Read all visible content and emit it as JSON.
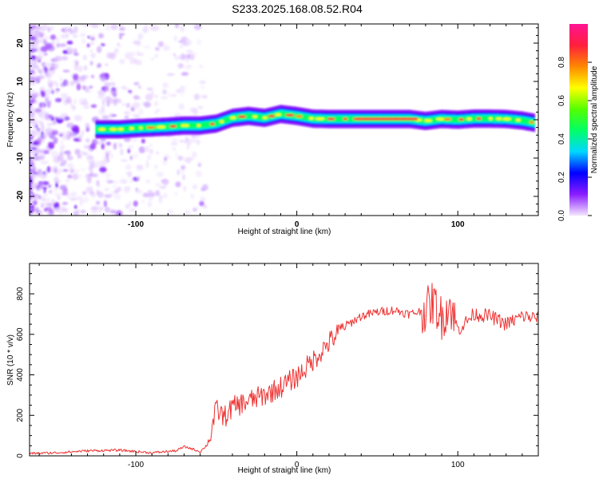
{
  "title": "S233.2025.168.08.52.R04",
  "chart_data": [
    {
      "type": "heatmap",
      "xlabel": "Height of straight line (km)",
      "ylabel": "Frequency (Hz)",
      "xlim": [
        -166,
        150
      ],
      "ylim": [
        -25,
        25
      ],
      "x_ticks": [
        {
          "value": -100,
          "label": "-100"
        },
        {
          "value": 0,
          "label": "0"
        },
        {
          "value": 100,
          "label": "100"
        }
      ],
      "y_ticks": [
        {
          "value": 20,
          "label": "20"
        },
        {
          "value": 10,
          "label": "10"
        },
        {
          "value": 0,
          "label": "0"
        },
        {
          "value": -10,
          "label": "-10"
        },
        {
          "value": -20,
          "label": "-20"
        }
      ],
      "ridge": {
        "x": [
          -125,
          -110,
          -100,
          -90,
          -80,
          -70,
          -60,
          -50,
          -40,
          -30,
          -20,
          -10,
          0,
          10,
          20,
          30,
          40,
          50,
          60,
          70,
          80,
          90,
          100,
          110,
          120,
          130,
          140,
          148
        ],
        "freq": [
          -2.5,
          -2.5,
          -2.2,
          -2.0,
          -1.8,
          -1.5,
          -1.5,
          -1.0,
          0.5,
          1.0,
          0.5,
          1.5,
          1.0,
          0.3,
          0.2,
          0.2,
          0.2,
          0.2,
          0.2,
          0.2,
          -0.3,
          0.2,
          0.0,
          0.3,
          0.3,
          0.2,
          -0.2,
          -0.8
        ]
      },
      "colorbar": {
        "label": "Normalized spectral amplitude",
        "range": [
          0,
          1
        ],
        "ticks": [
          {
            "value": 0.0,
            "label": "0.0"
          },
          {
            "value": 0.2,
            "label": "0.2"
          },
          {
            "value": 0.4,
            "label": "0.4"
          },
          {
            "value": 0.6,
            "label": "0.6"
          },
          {
            "value": 0.8,
            "label": "0.8"
          }
        ],
        "stops": [
          "#f3e6ff",
          "#8a1cff",
          "#0000ff",
          "#00d8ff",
          "#00ff66",
          "#55ff00",
          "#ffff00",
          "#ff8800",
          "#ff1f3d",
          "#ff1493"
        ]
      }
    },
    {
      "type": "line",
      "xlabel": "Height of straight line (km)",
      "ylabel": "SNR (10 * v/v)",
      "xlim": [
        -166,
        150
      ],
      "ylim": [
        0,
        950
      ],
      "color": "#ee3333",
      "x_ticks": [
        {
          "value": -100,
          "label": "-100"
        },
        {
          "value": 0,
          "label": "0"
        },
        {
          "value": 100,
          "label": "100"
        }
      ],
      "y_ticks": [
        {
          "value": 0,
          "label": "0"
        },
        {
          "value": 200,
          "label": "200"
        },
        {
          "value": 400,
          "label": "400"
        },
        {
          "value": 600,
          "label": "600"
        },
        {
          "value": 800,
          "label": "800"
        }
      ],
      "series": [
        {
          "name": "SNR",
          "x": [
            -166,
            -150,
            -130,
            -110,
            -90,
            -75,
            -70,
            -65,
            -60,
            -55,
            -50,
            -45,
            -40,
            -30,
            -20,
            -10,
            0,
            10,
            20,
            30,
            40,
            50,
            60,
            70,
            80,
            85,
            90,
            95,
            100,
            110,
            120,
            130,
            140,
            150
          ],
          "values": [
            12,
            15,
            25,
            28,
            15,
            25,
            45,
            35,
            20,
            60,
            230,
            190,
            240,
            270,
            300,
            340,
            390,
            470,
            560,
            640,
            690,
            710,
            720,
            700,
            720,
            760,
            680,
            750,
            620,
            700,
            690,
            650,
            690,
            680
          ]
        }
      ]
    }
  ]
}
